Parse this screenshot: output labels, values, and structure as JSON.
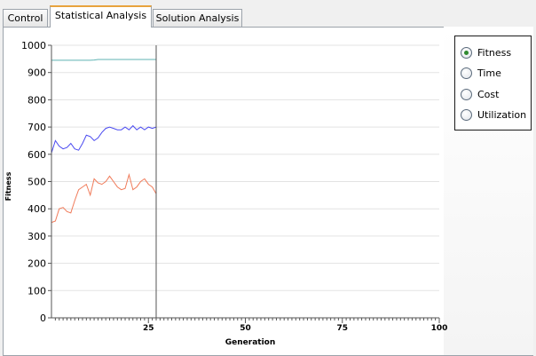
{
  "tabs": [
    {
      "label": "Control"
    },
    {
      "label": "Statistical Analysis"
    },
    {
      "label": "Solution Analysis"
    }
  ],
  "metric_options": [
    {
      "label": "Fitness",
      "selected": true
    },
    {
      "label": "Time",
      "selected": false
    },
    {
      "label": "Cost",
      "selected": false
    },
    {
      "label": "Utilization",
      "selected": false
    }
  ],
  "colors": {
    "tab_accent": "#e8a33d",
    "series_top": "#5fb3b3",
    "series_mid": "#4a4af0",
    "series_low": "#f07b5a",
    "cursor": "#555555"
  },
  "chart_data": {
    "type": "line",
    "xlabel": "Generation",
    "ylabel": "Fitness",
    "xlim": [
      0,
      100
    ],
    "ylim": [
      0,
      1000
    ],
    "x_ticks": [
      "25",
      "50",
      "75",
      "100"
    ],
    "y_ticks": [
      "0",
      "100",
      "200",
      "300",
      "400",
      "500",
      "600",
      "700",
      "800",
      "900",
      "1000"
    ],
    "cursor_x": 27,
    "x": [
      0,
      1,
      2,
      3,
      4,
      5,
      6,
      7,
      8,
      9,
      10,
      11,
      12,
      13,
      14,
      15,
      16,
      17,
      18,
      19,
      20,
      21,
      22,
      23,
      24,
      25,
      26,
      27
    ],
    "series": [
      {
        "values": [
          945,
          945,
          945,
          945,
          945,
          945,
          945,
          945,
          945,
          945,
          945,
          946,
          948,
          948,
          948,
          948,
          948,
          948,
          948,
          948,
          948,
          948,
          948,
          948,
          948,
          948,
          948,
          948
        ]
      },
      {
        "values": [
          605,
          650,
          630,
          620,
          625,
          640,
          620,
          615,
          640,
          670,
          665,
          650,
          660,
          680,
          695,
          700,
          695,
          690,
          690,
          700,
          690,
          705,
          690,
          700,
          690,
          700,
          695,
          700
        ]
      },
      {
        "values": [
          350,
          355,
          400,
          405,
          390,
          385,
          430,
          470,
          480,
          490,
          450,
          510,
          495,
          490,
          500,
          520,
          500,
          480,
          470,
          475,
          525,
          470,
          480,
          500,
          510,
          490,
          480,
          455
        ]
      }
    ]
  }
}
